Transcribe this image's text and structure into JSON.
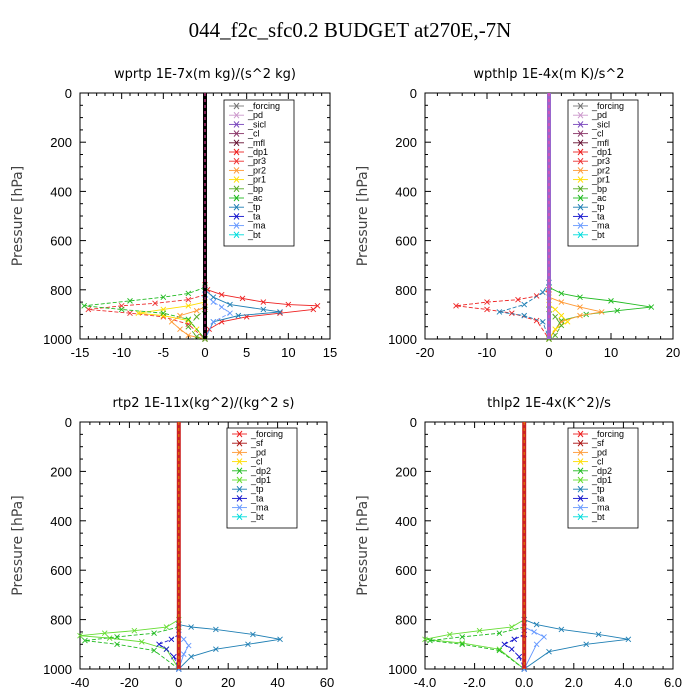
{
  "figure_title": "044_f2c_sfc0.2  BUDGET at270E,-7N",
  "colors": {
    "forcing": "#777777",
    "pd": "#cc99cc",
    "sicl": "#7744bb",
    "cl": "#883366",
    "mfl": "#661133",
    "dp1": "#ee2222",
    "pr3": "#ee3333",
    "pr2": "#ff9933",
    "pr1": "#ffdd00",
    "bp": "#55aa22",
    "ac": "#22bb22",
    "tp": "#1f7fb4",
    "ta": "#1111cc",
    "ma": "#6699ff",
    "bt": "#00dddd",
    "sf": "#aa1111",
    "dp2": "#66dd33",
    "thick_line": "#000000"
  },
  "chart_data": [
    {
      "type": "line",
      "title": "wprtp  1E-7x(m kg)/(s^2 kg)",
      "ylabel": "Pressure [hPa]",
      "xlim": [
        -15,
        15
      ],
      "ylim": [
        1000,
        0
      ],
      "xticks": [
        -15,
        -10,
        -5,
        0,
        5,
        10,
        15
      ],
      "xtick_labels": [
        "-15",
        "-10",
        "-5",
        "0",
        "5",
        "10",
        "15"
      ],
      "yticks": [
        0,
        200,
        400,
        600,
        800,
        1000
      ],
      "ytick_labels": [
        "0",
        "200",
        "400",
        "600",
        "800",
        "1000"
      ],
      "thick_line": "forcing",
      "legend": [
        "_forcing",
        "_pd",
        "_sicl",
        "_cl",
        "_mfl",
        "_dp1",
        "_pr3",
        "_pr2",
        "_pr1",
        "_bp",
        "_ac",
        "_tp",
        "_ta",
        "_ma",
        "_bt"
      ],
      "series": [
        {
          "name": "_dp1",
          "color_key": "dp1",
          "x": [
            0,
            0.3,
            2,
            4.5,
            7,
            10,
            13.5,
            13,
            9,
            5,
            2,
            0.5,
            0
          ],
          "y": [
            780,
            800,
            820,
            835,
            850,
            860,
            865,
            880,
            895,
            910,
            930,
            960,
            1000
          ]
        },
        {
          "name": "_pr3",
          "color_key": "pr3",
          "x": [
            0,
            -2,
            -6,
            -10,
            -14,
            -9,
            -5,
            -2,
            0
          ],
          "y": [
            820,
            840,
            855,
            865,
            880,
            895,
            910,
            940,
            1000
          ]
        },
        {
          "name": "_pr1",
          "color_key": "pr1",
          "x": [
            0,
            -2,
            -5,
            -8,
            -5,
            -2,
            -1,
            0
          ],
          "y": [
            850,
            865,
            880,
            895,
            905,
            925,
            960,
            1000
          ]
        },
        {
          "name": "_ac",
          "color_key": "ac",
          "x": [
            0,
            -2,
            -5,
            -9,
            -14.5,
            -10,
            -5,
            -2,
            0
          ],
          "y": [
            790,
            815,
            830,
            845,
            865,
            880,
            895,
            920,
            1000
          ]
        },
        {
          "name": "_tp",
          "color_key": "tp",
          "x": [
            0,
            1,
            3,
            7,
            9,
            4,
            1,
            0
          ],
          "y": [
            800,
            830,
            860,
            880,
            890,
            905,
            930,
            1000
          ]
        },
        {
          "name": "_ma",
          "color_key": "ma",
          "x": [
            0,
            1,
            2,
            3,
            1,
            0
          ],
          "y": [
            820,
            850,
            870,
            895,
            930,
            1000
          ]
        },
        {
          "name": "_pr2",
          "color_key": "pr2",
          "x": [
            0,
            -1,
            -3,
            -4,
            -3,
            -2,
            0
          ],
          "y": [
            870,
            885,
            905,
            930,
            960,
            985,
            1000
          ]
        },
        {
          "name": "_bp",
          "color_key": "bp",
          "x": [
            0,
            -1,
            -2,
            -1,
            0
          ],
          "y": [
            880,
            910,
            950,
            990,
            1000
          ]
        }
      ]
    },
    {
      "type": "line",
      "title": "wpthlp  1E-4x(m K)/s^2",
      "ylabel": "Pressure [hPa]",
      "xlim": [
        -20,
        20
      ],
      "ylim": [
        1000,
        0
      ],
      "xticks": [
        -20,
        -10,
        0,
        10,
        20
      ],
      "xtick_labels": [
        "-20",
        "-10",
        "0",
        "10",
        "20"
      ],
      "yticks": [
        0,
        200,
        400,
        600,
        800,
        1000
      ],
      "ytick_labels": [
        "0",
        "200",
        "400",
        "600",
        "800",
        "1000"
      ],
      "thick_line": "pd",
      "legend": [
        "_forcing",
        "_pd",
        "_sicl",
        "_cl",
        "_mfl",
        "_dp1",
        "_pr3",
        "_pr2",
        "_pr1",
        "_bp",
        "_ac",
        "_tp",
        "_ta",
        "_ma",
        "_bt"
      ],
      "series": [
        {
          "name": "_ac",
          "color_key": "ac",
          "x": [
            0,
            2,
            5,
            10,
            16.5,
            11,
            6,
            2,
            0
          ],
          "y": [
            790,
            815,
            830,
            845,
            870,
            885,
            900,
            925,
            1000
          ]
        },
        {
          "name": "_dp1",
          "color_key": "dp1",
          "x": [
            0,
            -2,
            -5,
            -10,
            -15,
            -10,
            -6,
            -2,
            0
          ],
          "y": [
            800,
            825,
            840,
            850,
            865,
            880,
            895,
            925,
            1000
          ]
        },
        {
          "name": "_pr2",
          "color_key": "pr2",
          "x": [
            0,
            2,
            5,
            8.5,
            5,
            2,
            0
          ],
          "y": [
            830,
            850,
            870,
            890,
            905,
            930,
            1000
          ]
        },
        {
          "name": "_tp",
          "color_key": "tp",
          "x": [
            0,
            -1,
            -4,
            -8,
            -4,
            -1,
            0
          ],
          "y": [
            770,
            810,
            860,
            890,
            905,
            930,
            1000
          ]
        },
        {
          "name": "_pr1",
          "color_key": "pr1",
          "x": [
            0,
            1,
            2,
            3,
            1,
            0
          ],
          "y": [
            860,
            880,
            905,
            930,
            960,
            1000
          ]
        },
        {
          "name": "_bp",
          "color_key": "bp",
          "x": [
            0,
            1,
            2,
            1,
            0
          ],
          "y": [
            880,
            910,
            945,
            985,
            1000
          ]
        }
      ]
    },
    {
      "type": "line",
      "title": "rtp2  1E-11x(kg^2)/(kg^2 s)",
      "ylabel": "Pressure [hPa]",
      "xlim": [
        -40,
        60
      ],
      "ylim": [
        1000,
        0
      ],
      "xticks": [
        -40,
        -20,
        0,
        20,
        40,
        60
      ],
      "xtick_labels": [
        "-40",
        "-20",
        "0",
        "20",
        "40",
        "60"
      ],
      "yticks": [
        0,
        200,
        400,
        600,
        800,
        1000
      ],
      "ytick_labels": [
        "0",
        "200",
        "400",
        "600",
        "800",
        "1000"
      ],
      "thick_line": "forcing",
      "legend": [
        "_forcing",
        "_sf",
        "_pd",
        "_cl",
        "_dp2",
        "_dp1",
        "_tp",
        "_ta",
        "_ma",
        "_bt"
      ],
      "series": [
        {
          "name": "_dp1",
          "color_key": "dp2",
          "x": [
            0,
            -5,
            -18,
            -30,
            -40,
            -28,
            -15,
            -5,
            0
          ],
          "y": [
            800,
            830,
            845,
            855,
            865,
            875,
            890,
            920,
            1000
          ]
        },
        {
          "name": "_dp2",
          "color_key": "ac",
          "x": [
            0,
            -10,
            -25,
            -38,
            -25,
            -10,
            0
          ],
          "y": [
            830,
            855,
            870,
            885,
            900,
            925,
            1000
          ]
        },
        {
          "name": "_tp",
          "color_key": "tp",
          "x": [
            0,
            5,
            15,
            30,
            41,
            28,
            15,
            5,
            0
          ],
          "y": [
            820,
            830,
            840,
            860,
            880,
            900,
            920,
            950,
            1000
          ]
        },
        {
          "name": "_ta",
          "color_key": "ta",
          "x": [
            0,
            -3,
            -8,
            -5,
            -2,
            0
          ],
          "y": [
            860,
            880,
            900,
            920,
            950,
            1000
          ]
        },
        {
          "name": "_ma",
          "color_key": "ma",
          "x": [
            0,
            2,
            4,
            2,
            0
          ],
          "y": [
            860,
            880,
            905,
            940,
            1000
          ]
        }
      ]
    },
    {
      "type": "line",
      "title": "thlp2  1E-4x(K^2)/s",
      "ylabel": "Pressure [hPa]",
      "xlim": [
        -4,
        6
      ],
      "ylim": [
        1000,
        0
      ],
      "xticks": [
        -4,
        -2,
        0,
        2,
        4,
        6
      ],
      "xtick_labels": [
        "-4.0",
        "-2.0",
        "0.0",
        "2.0",
        "4.0",
        "6.0"
      ],
      "yticks": [
        0,
        200,
        400,
        600,
        800,
        1000
      ],
      "ytick_labels": [
        "0",
        "200",
        "400",
        "600",
        "800",
        "1000"
      ],
      "thick_line": "forcing",
      "legend": [
        "_forcing",
        "_sf",
        "_pd",
        "_cl",
        "_dp2",
        "_dp1",
        "_tp",
        "_ta",
        "_ma",
        "_bt"
      ],
      "series": [
        {
          "name": "_dp1",
          "color_key": "dp2",
          "x": [
            0,
            -0.5,
            -1.8,
            -3,
            -4,
            -2.5,
            -1,
            0
          ],
          "y": [
            800,
            830,
            845,
            860,
            880,
            895,
            920,
            1000
          ]
        },
        {
          "name": "_dp2",
          "color_key": "ac",
          "x": [
            0,
            -1,
            -2.5,
            -3.8,
            -2.5,
            -1,
            0
          ],
          "y": [
            830,
            855,
            870,
            885,
            900,
            925,
            1000
          ]
        },
        {
          "name": "_tp",
          "color_key": "tp",
          "x": [
            0,
            0.5,
            1.5,
            3,
            4.2,
            2.5,
            1,
            0
          ],
          "y": [
            800,
            820,
            840,
            860,
            880,
            900,
            930,
            1000
          ]
        },
        {
          "name": "_ta",
          "color_key": "ta",
          "x": [
            0,
            -0.4,
            -0.8,
            -0.5,
            -0.2,
            0
          ],
          "y": [
            860,
            880,
            900,
            920,
            950,
            1000
          ]
        },
        {
          "name": "_ma",
          "color_key": "ma",
          "x": [
            0,
            0.4,
            0.8,
            0.5,
            0
          ],
          "y": [
            830,
            850,
            870,
            900,
            1000
          ]
        }
      ]
    }
  ]
}
